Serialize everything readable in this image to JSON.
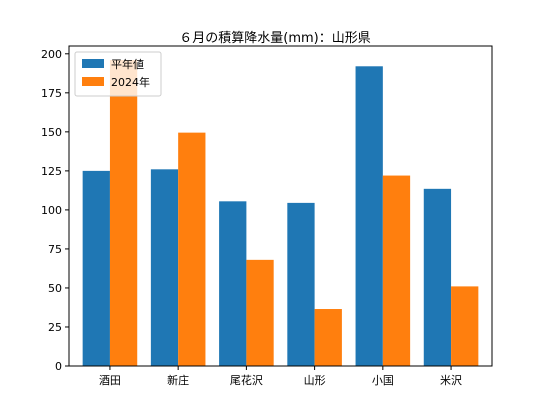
{
  "chart_data": {
    "type": "bar",
    "title": "６月の積算降水量(mm)：山形県",
    "xlabel": "",
    "ylabel": "",
    "categories": [
      "酒田",
      "新庄",
      "尾花沢",
      "山形",
      "小国",
      "米沢"
    ],
    "series": [
      {
        "name": "平年値",
        "color": "#1f77b4",
        "values": [
          125,
          126,
          105.5,
          104.5,
          192,
          113.5
        ]
      },
      {
        "name": "2024年",
        "color": "#ff7f0e",
        "values": [
          196,
          149.5,
          68,
          36.5,
          122,
          51
        ]
      }
    ],
    "ylim": [
      0,
      205
    ],
    "yticks": [
      0,
      25,
      50,
      75,
      100,
      125,
      150,
      175,
      200
    ],
    "grid": false,
    "legend_position": "top-left"
  }
}
